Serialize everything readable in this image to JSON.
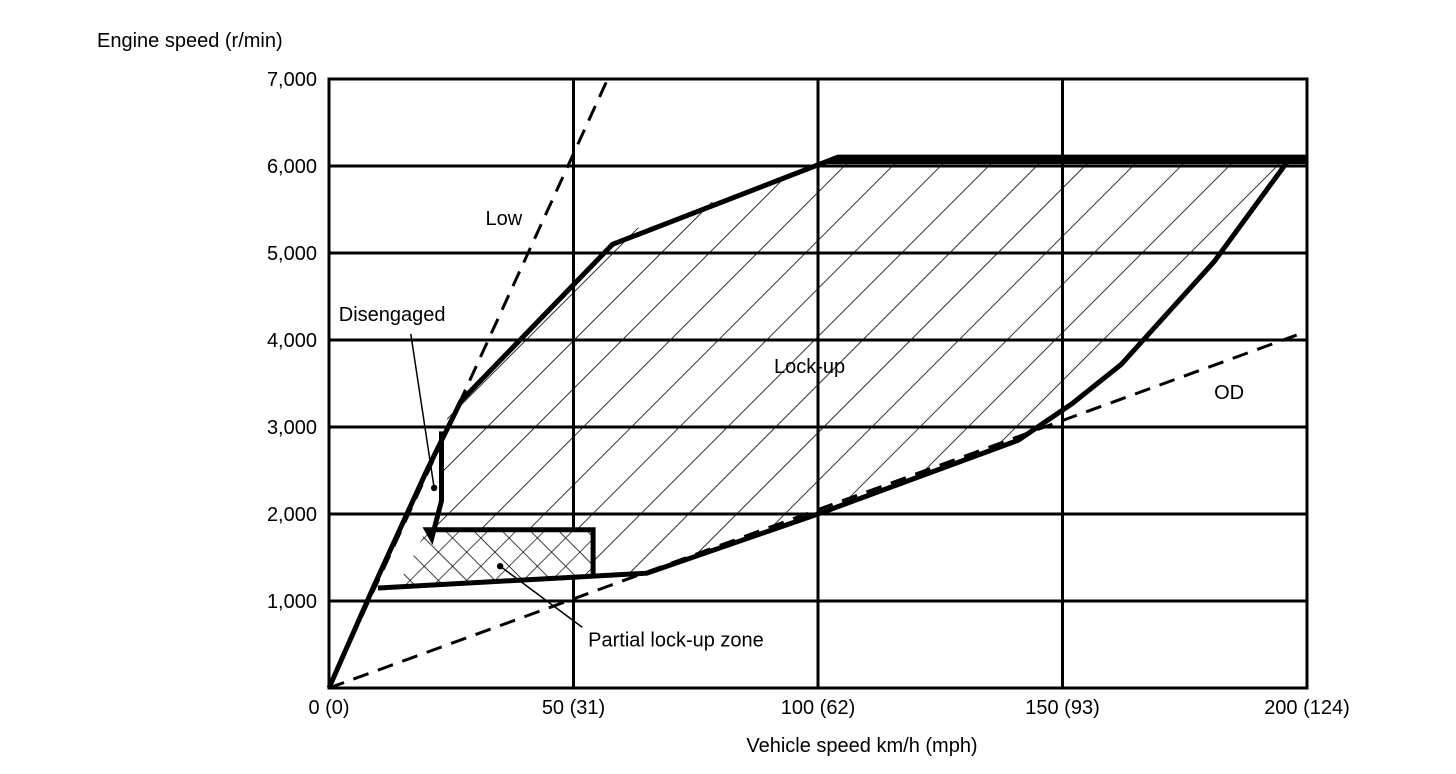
{
  "chart_data": {
    "type": "line",
    "ylabel": "Engine speed (r/min)",
    "xlabel": "Vehicle speed  km/h (mph)",
    "xlim": [
      0,
      200
    ],
    "ylim": [
      0,
      7000
    ],
    "x_ticks": [
      {
        "value": 0,
        "label": "0 (0)"
      },
      {
        "value": 50,
        "label": "50 (31)"
      },
      {
        "value": 100,
        "label": "100 (62)"
      },
      {
        "value": 150,
        "label": "150 (93)"
      },
      {
        "value": 200,
        "label": "200 (124)"
      }
    ],
    "y_ticks": [
      {
        "value": 1000,
        "label": "1,000"
      },
      {
        "value": 2000,
        "label": "2,000"
      },
      {
        "value": 3000,
        "label": "3,000"
      },
      {
        "value": 4000,
        "label": "4,000"
      },
      {
        "value": 5000,
        "label": "5,000"
      },
      {
        "value": 6000,
        "label": "6,000"
      },
      {
        "value": 7000,
        "label": "7,000"
      }
    ],
    "grid": true,
    "gear_lines": [
      {
        "name": "Low",
        "style": "dashed",
        "points": [
          [
            0,
            0
          ],
          [
            57,
            7000
          ]
        ]
      },
      {
        "name": "OD",
        "style": "dashed",
        "points": [
          [
            0,
            0
          ],
          [
            200,
            4100
          ]
        ]
      }
    ],
    "regions": [
      {
        "name": "Lock-up",
        "fill": "hatch-diagonal",
        "points": [
          [
            21,
            1720
          ],
          [
            23,
            2150
          ],
          [
            23,
            2950
          ],
          [
            31,
            3950
          ],
          [
            51,
            5050
          ],
          [
            102,
            6050
          ],
          [
            200,
            6050
          ],
          [
            181,
            4900
          ],
          [
            162,
            3700
          ],
          [
            141,
            2850
          ],
          [
            100,
            2000
          ],
          [
            65,
            1300
          ],
          [
            54,
            1280
          ],
          [
            54,
            1820
          ],
          [
            20,
            1820
          ]
        ]
      },
      {
        "name": "Partial lock-up zone",
        "fill": "hatch-cross",
        "points": [
          [
            14,
            1170
          ],
          [
            54,
            1280
          ],
          [
            54,
            1820
          ],
          [
            20,
            1820
          ]
        ]
      },
      {
        "name": "Disengaged",
        "fill": "none",
        "points": [
          [
            9,
            1150
          ],
          [
            14,
            1170
          ],
          [
            21,
            1720
          ],
          [
            23,
            2150
          ],
          [
            23,
            2800
          ],
          [
            20,
            2500
          ]
        ]
      }
    ],
    "outer_boundary": [
      [
        0,
        0
      ],
      [
        9,
        1150
      ],
      [
        20,
        2500
      ],
      [
        27,
        3300
      ],
      [
        58,
        5100
      ],
      [
        104,
        6100
      ],
      [
        200,
        6100
      ]
    ],
    "inner_boundary_top": [
      [
        23,
        2950
      ],
      [
        23,
        2150
      ],
      [
        21,
        1720
      ],
      [
        20,
        1820
      ],
      [
        54,
        1820
      ],
      [
        54,
        1280
      ]
    ],
    "lower_boundary": [
      [
        10,
        1150
      ],
      [
        65,
        1320
      ],
      [
        100,
        2000
      ],
      [
        141,
        2850
      ],
      [
        152,
        3270
      ],
      [
        162,
        3720
      ],
      [
        181,
        4900
      ],
      [
        196,
        6050
      ]
    ],
    "annotations": [
      {
        "text": "Low",
        "x": 32,
        "y": 5400
      },
      {
        "text": "Lock-up",
        "x": 91,
        "y": 3700
      },
      {
        "text": "OD",
        "x": 181,
        "y": 3400
      },
      {
        "text": "Disengaged",
        "x": 2,
        "y": 4300,
        "target": [
          21.5,
          2300
        ]
      },
      {
        "text": "Partial lock-up zone",
        "x": 53,
        "y": 560,
        "target": [
          35,
          1400
        ]
      }
    ]
  }
}
